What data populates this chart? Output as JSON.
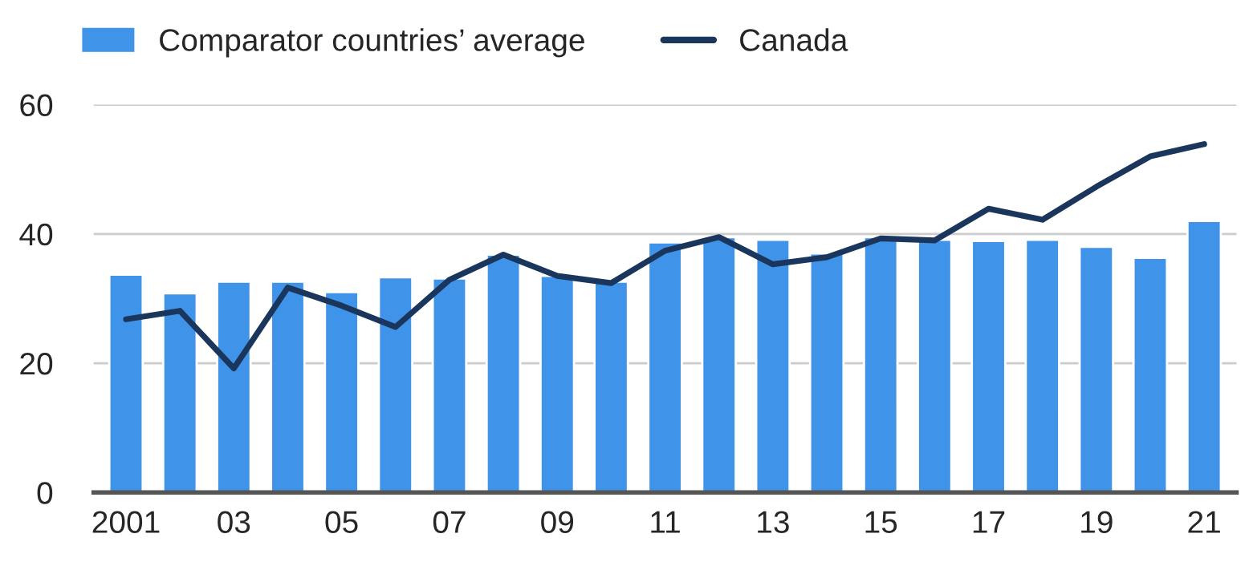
{
  "chart_data": {
    "type": "bar",
    "categories": [
      "2001",
      null,
      "03",
      null,
      "05",
      null,
      "07",
      null,
      "09",
      null,
      "11",
      null,
      "13",
      null,
      "15",
      null,
      "17",
      null,
      "19",
      null,
      "21"
    ],
    "series": [
      {
        "name": "Comparator countries’ average",
        "color": "#3f94e9",
        "values": [
          33.7,
          30.8,
          32.6,
          32.6,
          31.0,
          33.3,
          33.1,
          36.8,
          33.5,
          32.6,
          38.7,
          39.5,
          39.1,
          37.0,
          39.5,
          39.1,
          38.9,
          39.1,
          38.0,
          36.3,
          42.0
        ]
      },
      {
        "name": "Canada",
        "type": "line",
        "color": "#1b365d",
        "values": [
          26.8,
          28.1,
          19.2,
          31.7,
          28.9,
          25.6,
          32.9,
          36.8,
          33.5,
          32.4,
          37.4,
          39.5,
          35.3,
          36.4,
          39.3,
          39.0,
          43.9,
          42.2,
          47.3,
          52.0,
          53.9
        ]
      }
    ],
    "ylim": [
      0,
      60
    ],
    "yticks": [
      0,
      20,
      40,
      60
    ],
    "grid": "y",
    "legend": "top left",
    "marker": "none",
    "line_style": "solid"
  }
}
